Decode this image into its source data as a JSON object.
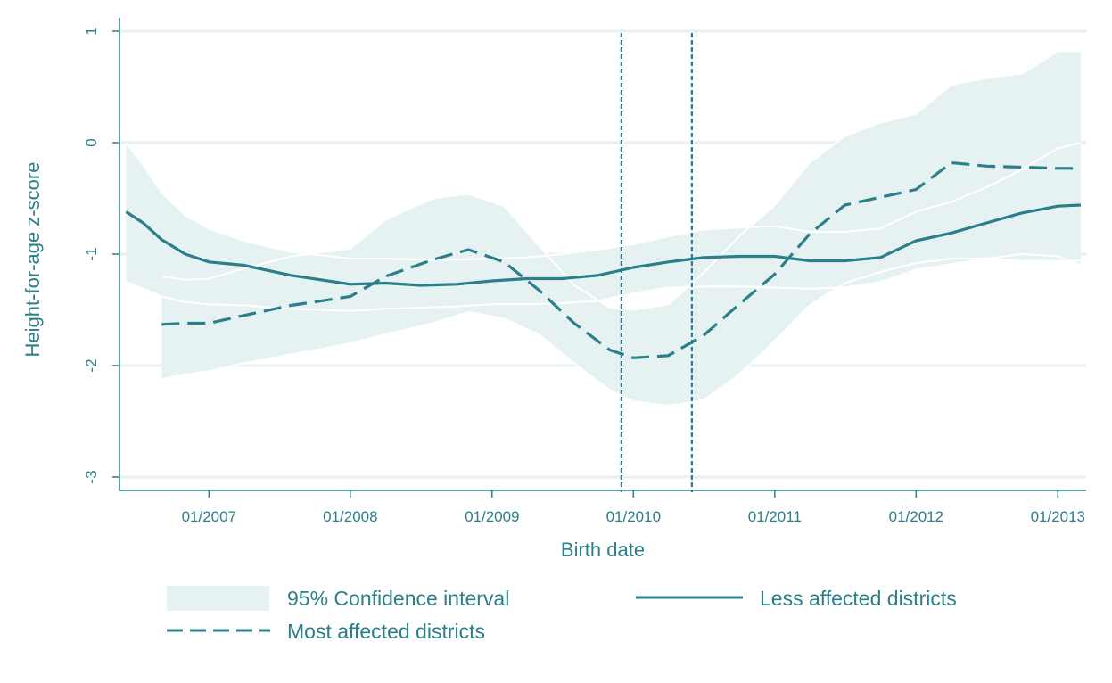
{
  "chart_data": {
    "type": "line",
    "xlabel": "Birth date",
    "ylabel": "Height-for-age z-score",
    "xlim": [
      "2006-05-15",
      "2013-03-15"
    ],
    "ylim": [
      -3.12,
      1.12
    ],
    "x_ticks": [
      "2007-01-01",
      "2008-01-01",
      "2009-01-01",
      "2010-01-01",
      "2011-01-01",
      "2012-01-01",
      "2013-01-01"
    ],
    "x_tick_labels": [
      "01/2007",
      "01/2008",
      "01/2009",
      "01/2010",
      "01/2011",
      "01/2012",
      "01/2013"
    ],
    "y_ticks": [
      -3,
      -2,
      -1,
      0,
      1
    ],
    "y_tick_labels": [
      "-3",
      "-2",
      "-1",
      "0",
      "1"
    ],
    "grid": true,
    "legend_position": "bottom",
    "vertical_reference_lines": [
      "2009-12-01",
      "2010-06-01"
    ],
    "colors": {
      "line": "#2a7f8a",
      "band": "#e6f2f2",
      "grid": "#e6f0f0",
      "axis": "#2a7f8a"
    },
    "legend": {
      "ci_label": "95% Confidence interval",
      "less_label": "Less affected districts",
      "most_label": "Most affected districts"
    },
    "series": [
      {
        "name": "Less affected districts",
        "style": "solid",
        "x": [
          "2006-06-01",
          "2006-07-15",
          "2006-09-01",
          "2006-11-01",
          "2007-01-01",
          "2007-04-01",
          "2007-08-01",
          "2008-01-01",
          "2008-04-01",
          "2008-07-01",
          "2008-10-01",
          "2009-01-01",
          "2009-04-01",
          "2009-07-01",
          "2009-10-01",
          "2010-01-01",
          "2010-04-01",
          "2010-07-01",
          "2010-10-01",
          "2011-01-01",
          "2011-04-01",
          "2011-07-01",
          "2011-10-01",
          "2012-01-01",
          "2012-04-01",
          "2012-07-01",
          "2012-10-01",
          "2013-01-01",
          "2013-03-01"
        ],
        "y": [
          -0.62,
          -0.72,
          -0.87,
          -1.0,
          -1.07,
          -1.1,
          -1.19,
          -1.27,
          -1.26,
          -1.28,
          -1.27,
          -1.24,
          -1.22,
          -1.22,
          -1.19,
          -1.12,
          -1.07,
          -1.03,
          -1.02,
          -1.02,
          -1.06,
          -1.06,
          -1.03,
          -0.88,
          -0.81,
          -0.72,
          -0.63,
          -0.57,
          -0.56
        ],
        "ci_lower": [
          -1.25,
          -1.31,
          -1.38,
          -1.43,
          -1.45,
          -1.46,
          -1.49,
          -1.51,
          -1.49,
          -1.48,
          -1.47,
          -1.45,
          -1.45,
          -1.44,
          -1.42,
          -1.35,
          -1.3,
          -1.29,
          -1.29,
          -1.3,
          -1.31,
          -1.3,
          -1.25,
          -1.14,
          -1.09,
          -1.04,
          -1.0,
          -1.02,
          -1.1
        ],
        "ci_upper": [
          0.0,
          -0.2,
          -0.45,
          -0.65,
          -0.77,
          -0.88,
          -0.98,
          -1.04,
          -1.04,
          -1.05,
          -1.05,
          -1.04,
          -1.03,
          -1.0,
          -0.96,
          -0.91,
          -0.84,
          -0.78,
          -0.76,
          -0.75,
          -0.8,
          -0.8,
          -0.77,
          -0.62,
          -0.53,
          -0.4,
          -0.24,
          -0.05,
          0.0
        ]
      },
      {
        "name": "Most affected districts",
        "style": "dashed",
        "x": [
          "2006-09-01",
          "2006-11-01",
          "2007-01-01",
          "2007-04-01",
          "2007-08-01",
          "2008-01-01",
          "2008-04-01",
          "2008-08-01",
          "2008-11-01",
          "2009-02-01",
          "2009-05-01",
          "2009-08-01",
          "2009-11-01",
          "2010-01-01",
          "2010-04-01",
          "2010-07-01",
          "2010-10-01",
          "2011-01-01",
          "2011-04-01",
          "2011-07-01",
          "2011-10-01",
          "2012-01-01",
          "2012-04-01",
          "2012-07-01",
          "2012-10-01",
          "2013-01-01",
          "2013-03-01"
        ],
        "y": [
          -1.63,
          -1.62,
          -1.62,
          -1.55,
          -1.46,
          -1.38,
          -1.2,
          -1.05,
          -0.96,
          -1.07,
          -1.32,
          -1.62,
          -1.86,
          -1.93,
          -1.91,
          -1.73,
          -1.45,
          -1.18,
          -0.82,
          -0.56,
          -0.49,
          -0.42,
          -0.18,
          -0.21,
          -0.22,
          -0.23,
          -0.23
        ],
        "ci_lower": [
          -2.12,
          -2.08,
          -2.05,
          -1.98,
          -1.9,
          -1.8,
          -1.72,
          -1.62,
          -1.52,
          -1.58,
          -1.72,
          -1.98,
          -2.22,
          -2.32,
          -2.36,
          -2.31,
          -2.08,
          -1.78,
          -1.46,
          -1.26,
          -1.16,
          -1.08,
          -1.04,
          -1.04,
          -1.06,
          -1.06,
          -1.06
        ],
        "ci_upper": [
          -1.2,
          -1.23,
          -1.22,
          -1.13,
          -1.02,
          -0.95,
          -0.69,
          -0.5,
          -0.46,
          -0.57,
          -0.92,
          -1.28,
          -1.48,
          -1.5,
          -1.45,
          -1.17,
          -0.84,
          -0.56,
          -0.18,
          0.06,
          0.18,
          0.26,
          0.52,
          0.58,
          0.62,
          0.82,
          0.82
        ]
      }
    ]
  }
}
